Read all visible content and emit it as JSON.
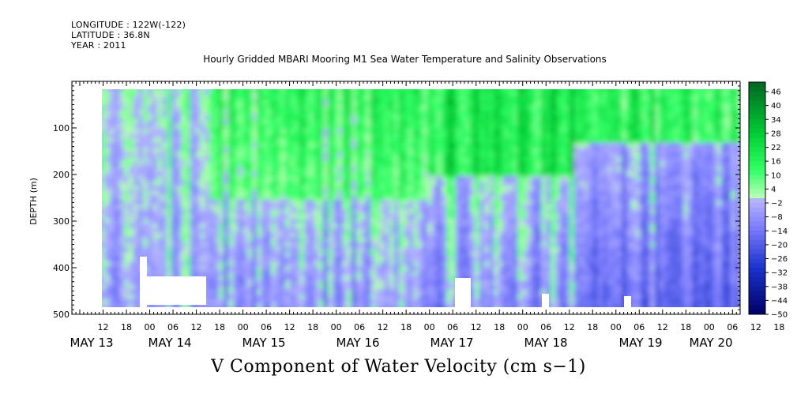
{
  "header": {
    "longitude": "LONGITUDE : 122W(-122)",
    "latitude": "LATITUDE : 36.8N",
    "year": "YEAR : 2011"
  },
  "chart_data": {
    "type": "heatmap",
    "title": "Hourly Gridded MBARI Mooring M1 Sea Water Temperature and Salinity Observations",
    "xlabel": "V Component of Water Velocity (cm s−1)",
    "ylabel": "DEPTH (m)",
    "ylim": [
      500,
      0
    ],
    "y_ticks": [
      100,
      200,
      300,
      400,
      500
    ],
    "x_hour_labels": [
      "12",
      "18",
      "00",
      "06",
      "12",
      "18",
      "00",
      "06",
      "12",
      "18",
      "00",
      "06",
      "12",
      "18",
      "00",
      "06",
      "12",
      "18",
      "00",
      "06",
      "12",
      "18",
      "00",
      "06",
      "12",
      "18",
      "00",
      "06",
      "12",
      "18",
      "00",
      "06"
    ],
    "x_date_labels": [
      "MAY 13",
      "MAY 14",
      "MAY 15",
      "MAY 16",
      "MAY 17",
      "MAY 18",
      "MAY 19",
      "MAY 20"
    ],
    "colorbar_labels": [
      "46",
      "40",
      "34",
      "28",
      "22",
      "16",
      "10",
      "4",
      "−2",
      "−8",
      "−14",
      "−20",
      "−26",
      "−32",
      "−38",
      "−44",
      "−50"
    ],
    "colorbar_range": [
      -50,
      50
    ],
    "color_scale": [
      "#000066",
      "#1a33cc",
      "#8080ff",
      "#b3b3ff",
      "#b3ffb3",
      "#33ff66",
      "#00cc33",
      "#006622"
    ],
    "grid": false,
    "legend": "right colorbar"
  }
}
